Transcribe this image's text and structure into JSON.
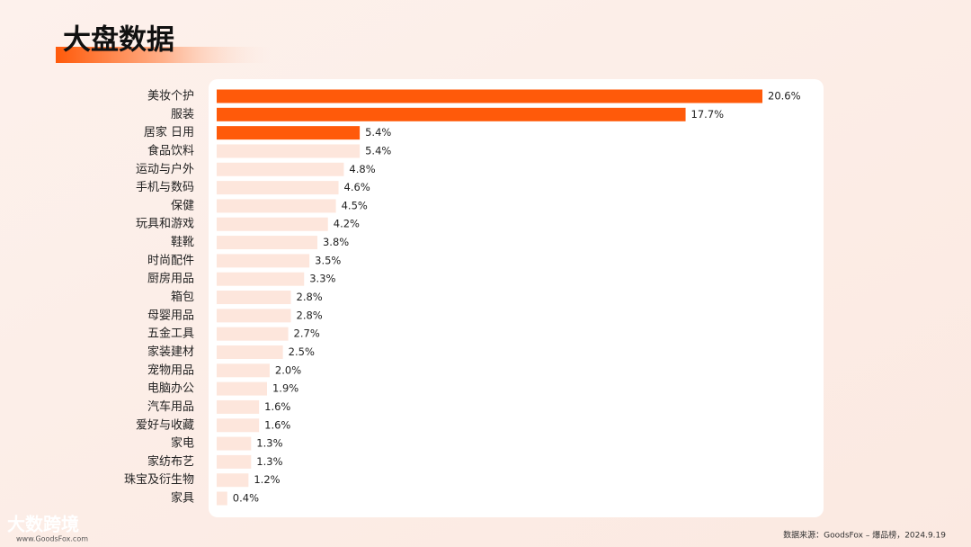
{
  "header": {
    "title": "大盘数据"
  },
  "chart_data": {
    "type": "bar",
    "orientation": "horizontal",
    "categories": [
      "美妆个护",
      "服装",
      "居家 日用",
      "食品饮料",
      "运动与户外",
      "手机与数码",
      "保健",
      "玩具和游戏",
      "鞋靴",
      "时尚配件",
      "厨房用品",
      "箱包",
      "母婴用品",
      "五金工具",
      "家装建材",
      "宠物用品",
      "电脑办公",
      "汽车用品",
      "爱好与收藏",
      "家电",
      "家纺布艺",
      "珠宝及衍生物",
      "家具"
    ],
    "values": [
      20.6,
      17.7,
      5.4,
      5.4,
      4.8,
      4.6,
      4.5,
      4.2,
      3.8,
      3.5,
      3.3,
      2.8,
      2.8,
      2.7,
      2.5,
      2.0,
      1.9,
      1.6,
      1.6,
      1.3,
      1.3,
      1.2,
      0.4
    ],
    "value_labels": [
      "20.6%",
      "17.7%",
      "5.4%",
      "5.4%",
      "4.8%",
      "4.6%",
      "4.5%",
      "4.2%",
      "3.8%",
      "3.5%",
      "3.3%",
      "2.8%",
      "2.8%",
      "2.7%",
      "2.5%",
      "2.0%",
      "1.9%",
      "1.6%",
      "1.6%",
      "1.3%",
      "1.3%",
      "1.2%",
      "0.4%"
    ],
    "colors": [
      "#ff5a0a",
      "#ff5a0a",
      "#ff5a0a",
      "#fde6dc",
      "#fde6dc",
      "#fde6dc",
      "#fde6dc",
      "#fde6dc",
      "#fde6dc",
      "#fde6dc",
      "#fde6dc",
      "#fde6dc",
      "#fde6dc",
      "#fde6dc",
      "#fde6dc",
      "#fde6dc",
      "#fde6dc",
      "#fde6dc",
      "#fde6dc",
      "#fde6dc",
      "#fde6dc",
      "#fde6dc",
      "#fde6dc"
    ]
  },
  "footer": {
    "source": "数据来源：GoodsFox – 爆品榜，2024.9.19",
    "logo": "大数跨境",
    "url": "www.GoodsFox.com"
  }
}
